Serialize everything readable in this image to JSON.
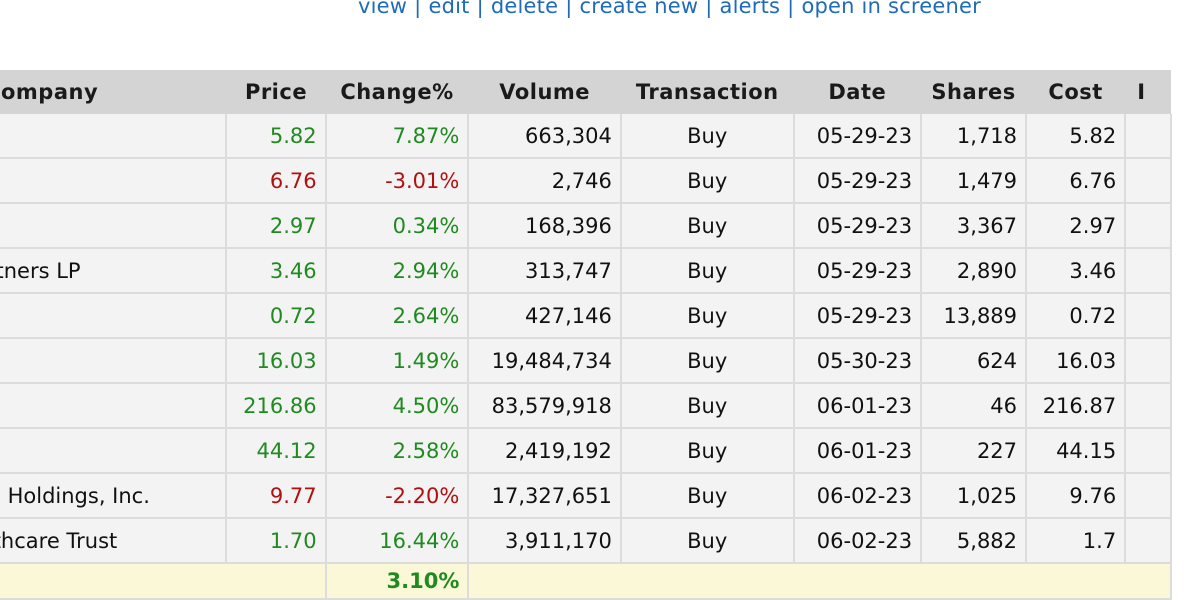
{
  "top_links": [
    "view",
    "edit",
    "delete",
    "create new",
    "alerts",
    "open in screener"
  ],
  "columns": {
    "company": "ompany",
    "price": "Price",
    "change": "Change%",
    "volume": "Volume",
    "transaction": "Transaction",
    "date": "Date",
    "shares": "Shares",
    "cost": "Cost",
    "extra": "I"
  },
  "rows": [
    {
      "company": "",
      "price": "5.82",
      "change": "7.87%",
      "volume": "663,304",
      "transaction": "Buy",
      "date": "05-29-23",
      "shares": "1,718",
      "cost": "5.82",
      "trend": "pos"
    },
    {
      "company": "",
      "price": "6.76",
      "change": "-3.01%",
      "volume": "2,746",
      "transaction": "Buy",
      "date": "05-29-23",
      "shares": "1,479",
      "cost": "6.76",
      "trend": "neg"
    },
    {
      "company": ".",
      "price": "2.97",
      "change": "0.34%",
      "volume": "168,396",
      "transaction": "Buy",
      "date": "05-29-23",
      "shares": "3,367",
      "cost": "2.97",
      "trend": "pos"
    },
    {
      "company": "artners LP",
      "price": "3.46",
      "change": "2.94%",
      "volume": "313,747",
      "transaction": "Buy",
      "date": "05-29-23",
      "shares": "2,890",
      "cost": "3.46",
      "trend": "pos"
    },
    {
      "company": "",
      "price": "0.72",
      "change": "2.64%",
      "volume": "427,146",
      "transaction": "Buy",
      "date": "05-29-23",
      "shares": "13,889",
      "cost": "0.72",
      "trend": "pos"
    },
    {
      "company": "",
      "price": "16.03",
      "change": "1.49%",
      "volume": "19,484,734",
      "transaction": "Buy",
      "date": "05-30-23",
      "shares": "624",
      "cost": "16.03",
      "trend": "pos"
    },
    {
      "company": "",
      "price": "216.86",
      "change": "4.50%",
      "volume": "83,579,918",
      "transaction": "Buy",
      "date": "06-01-23",
      "shares": "46",
      "cost": "216.87",
      "trend": "pos"
    },
    {
      "company": "",
      "price": "44.12",
      "change": "2.58%",
      "volume": "2,419,192",
      "transaction": "Buy",
      "date": "06-01-23",
      "shares": "227",
      "cost": "44.15",
      "trend": "pos"
    },
    {
      "company": "tal Holdings, Inc.",
      "price": "9.77",
      "change": "-2.20%",
      "volume": "17,327,651",
      "transaction": "Buy",
      "date": "06-02-23",
      "shares": "1,025",
      "cost": "9.76",
      "trend": "neg"
    },
    {
      "company": "althcare Trust",
      "price": "1.70",
      "change": "16.44%",
      "volume": "3,911,170",
      "transaction": "Buy",
      "date": "06-02-23",
      "shares": "5,882",
      "cost": "1.7",
      "trend": "pos"
    }
  ],
  "summary": {
    "total_change": "3.10%"
  },
  "colors": {
    "positive": "#1f8a1f",
    "negative": "#b01010",
    "link": "#1f6bb8",
    "header_bg": "#d4d4d4",
    "summary_bg": "#fbf8d8"
  }
}
